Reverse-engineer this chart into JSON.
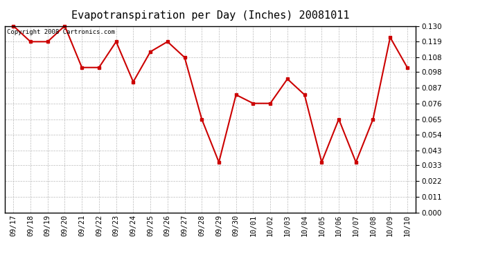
{
  "title": "Evapotranspiration per Day (Inches) 20081011",
  "copyright_text": "Copyright 2008 Cartronics.com",
  "dates": [
    "09/17",
    "09/18",
    "09/19",
    "09/20",
    "09/21",
    "09/22",
    "09/23",
    "09/24",
    "09/25",
    "09/26",
    "09/27",
    "09/28",
    "09/29",
    "09/30",
    "10/01",
    "10/02",
    "10/03",
    "10/04",
    "10/05",
    "10/06",
    "10/07",
    "10/08",
    "10/09",
    "10/10"
  ],
  "values": [
    0.13,
    0.119,
    0.119,
    0.13,
    0.101,
    0.101,
    0.119,
    0.091,
    0.112,
    0.119,
    0.108,
    0.065,
    0.035,
    0.082,
    0.076,
    0.076,
    0.093,
    0.082,
    0.035,
    0.065,
    0.035,
    0.065,
    0.122,
    0.101
  ],
  "line_color": "#cc0000",
  "marker": "s",
  "marker_size": 3,
  "bg_color": "#ffffff",
  "grid_color": "#bbbbbb",
  "ylim": [
    0.0,
    0.13
  ],
  "yticks": [
    0.0,
    0.011,
    0.022,
    0.033,
    0.043,
    0.054,
    0.065,
    0.076,
    0.087,
    0.098,
    0.108,
    0.119,
    0.13
  ],
  "title_fontsize": 11,
  "copyright_fontsize": 6.5,
  "tick_fontsize": 7.5
}
